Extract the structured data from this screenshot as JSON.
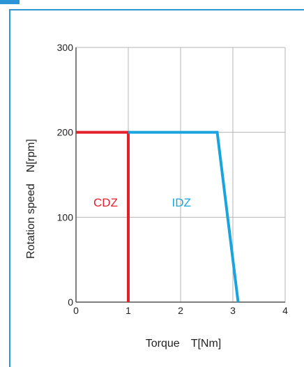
{
  "chart_data": {
    "type": "line",
    "xlabel": "Torque T[Nm]",
    "ylabel": "Rotation speed N[rpm]",
    "xlim": [
      0,
      4
    ],
    "ylim": [
      0,
      300
    ],
    "x_ticks": [
      "0",
      "1",
      "2",
      "3",
      "4"
    ],
    "y_ticks": [
      "0",
      "100",
      "200",
      "300"
    ],
    "grid": true,
    "series": [
      {
        "name": "CDZ",
        "color": "#e3202c",
        "points": [
          [
            0,
            200
          ],
          [
            1,
            200
          ],
          [
            1,
            0
          ]
        ]
      },
      {
        "name": "IDZ",
        "color": "#1aa4df",
        "points": [
          [
            1,
            200
          ],
          [
            2.7,
            200
          ],
          [
            3.1,
            0
          ]
        ]
      }
    ],
    "label_positions": [
      {
        "series": 0,
        "x": 0.5,
        "y": 115
      },
      {
        "series": 1,
        "x": 1.95,
        "y": 115
      }
    ]
  },
  "colors": {
    "frame_accent": "#2c95d8",
    "grid": "#b5b5b5",
    "axis": "#555555"
  }
}
